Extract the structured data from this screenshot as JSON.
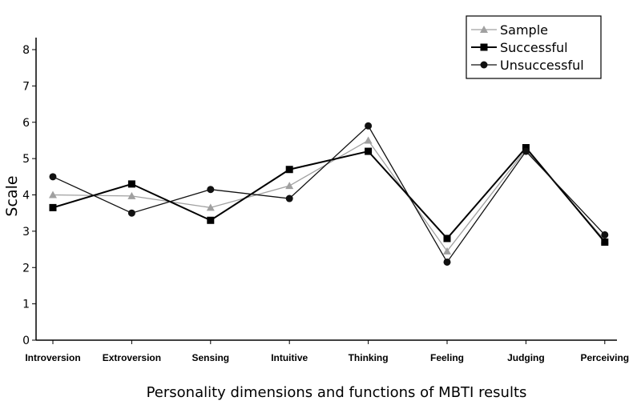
{
  "chart_data": {
    "type": "line",
    "title": "",
    "xlabel": "Personality dimensions and functions of MBTI results",
    "ylabel": "Scale",
    "ylim": [
      0,
      8
    ],
    "yticks": [
      0,
      1,
      2,
      3,
      4,
      5,
      6,
      7,
      8
    ],
    "grid": false,
    "legend_position": "top-right",
    "categories": [
      "Introversion",
      "Extroversion",
      "Sensing",
      "Intuitive",
      "Thinking",
      "Feeling",
      "Judging",
      "Perceiving"
    ],
    "series": [
      {
        "name": "Sample",
        "marker": "triangle",
        "color": "#a0a0a0",
        "values": [
          4.0,
          3.97,
          3.65,
          4.25,
          5.5,
          2.45,
          5.25,
          2.75
        ]
      },
      {
        "name": "Successful",
        "marker": "square",
        "color": "#000000",
        "values": [
          3.65,
          4.3,
          3.3,
          4.7,
          5.2,
          2.8,
          5.3,
          2.7
        ]
      },
      {
        "name": "Unsuccessful",
        "marker": "circle",
        "color": "#111111",
        "values": [
          4.5,
          3.5,
          4.15,
          3.9,
          5.9,
          2.15,
          5.2,
          2.9
        ]
      }
    ]
  }
}
